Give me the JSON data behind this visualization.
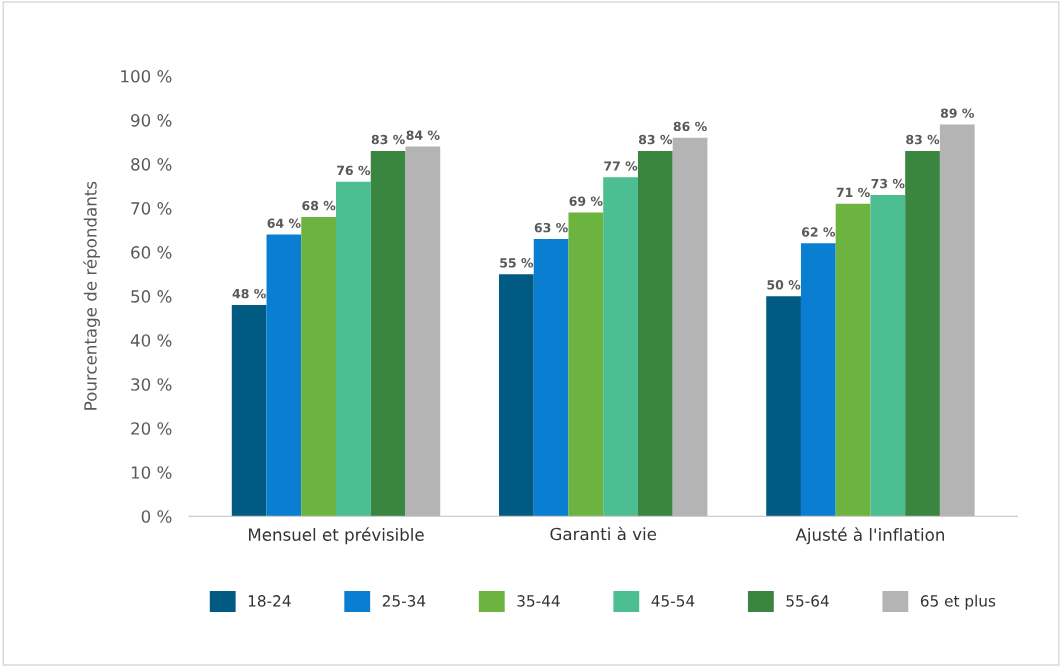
{
  "chart_data": {
    "type": "bar",
    "ylabel": "Pourcentage de répondants",
    "categories": [
      "Mensuel et prévisible",
      "Garanti à vie",
      "Ajusté à l'inflation"
    ],
    "series": [
      {
        "name": "18-24",
        "color": "#005a82",
        "values": [
          48,
          55,
          50
        ],
        "value_labels": [
          "48 %",
          "55 %",
          "50 %"
        ]
      },
      {
        "name": "25-34",
        "color": "#0a7fd1",
        "values": [
          64,
          63,
          62
        ],
        "value_labels": [
          "64 %",
          "63 %",
          "62 %"
        ]
      },
      {
        "name": "35-44",
        "color": "#6db33f",
        "values": [
          68,
          69,
          71
        ],
        "value_labels": [
          "68 %",
          "69 %",
          "71 %"
        ]
      },
      {
        "name": "45-54",
        "color": "#4dbe91",
        "values": [
          76,
          77,
          73
        ],
        "value_labels": [
          "76 %",
          "77 %",
          "73 %"
        ]
      },
      {
        "name": "55-64",
        "color": "#3a8540",
        "values": [
          83,
          83,
          83
        ],
        "value_labels": [
          "83 %",
          "83 %",
          "83 %"
        ]
      },
      {
        "name": "65 et plus",
        "color": "#b4b4b4",
        "values": [
          84,
          86,
          89
        ],
        "value_labels": [
          "84 %",
          "86 %",
          "89 %"
        ]
      }
    ],
    "ylim": [
      0,
      100
    ],
    "yticks": [
      {
        "value": 0,
        "label": "0 %"
      },
      {
        "value": 10,
        "label": "10 %"
      },
      {
        "value": 20,
        "label": "20 %"
      },
      {
        "value": 30,
        "label": "30 %"
      },
      {
        "value": 40,
        "label": "40 %"
      },
      {
        "value": 50,
        "label": "50 %"
      },
      {
        "value": 60,
        "label": "60 %"
      },
      {
        "value": 70,
        "label": "70 %"
      },
      {
        "value": 80,
        "label": "80 %"
      },
      {
        "value": 90,
        "label": "90 %"
      },
      {
        "value": 100,
        "label": "100 %"
      }
    ],
    "grid": false,
    "legend": "bottom"
  }
}
